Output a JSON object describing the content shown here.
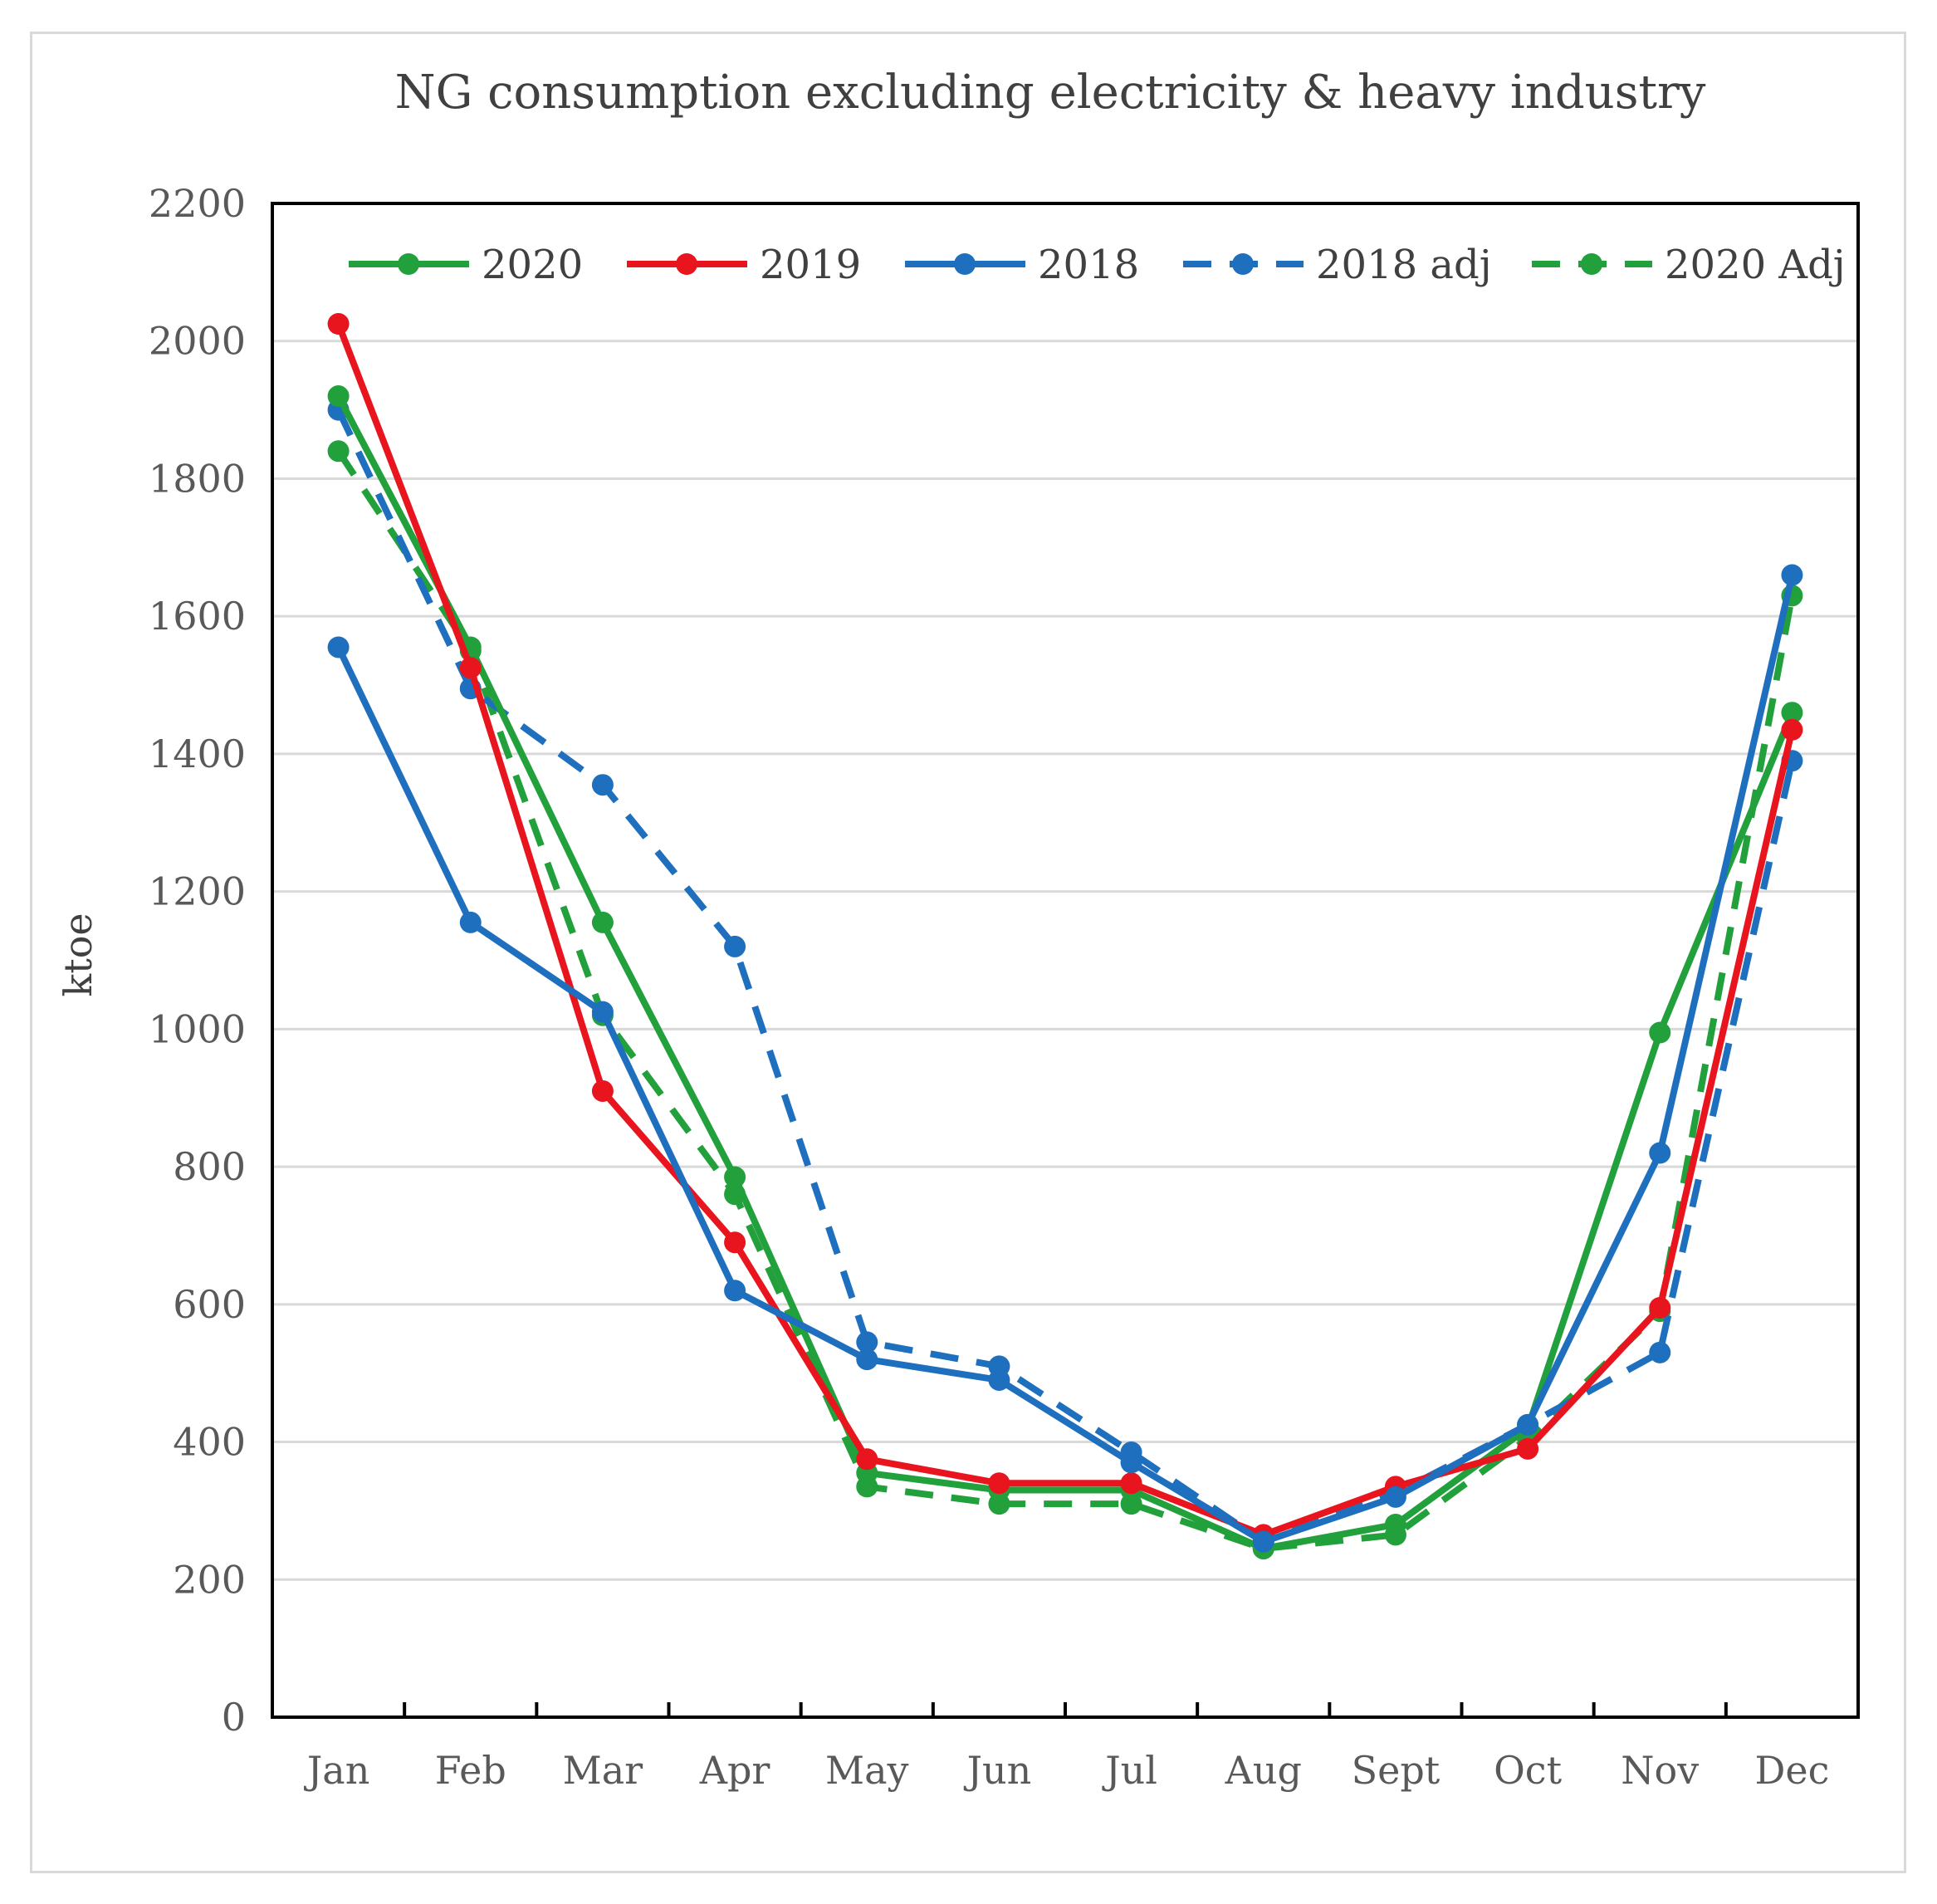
{
  "chart_data": {
    "type": "line",
    "title": "NG consumption excluding electricity & heavy industry",
    "xlabel": "",
    "ylabel": "ktoe",
    "ylim": [
      0,
      2200
    ],
    "yticks": [
      0,
      200,
      400,
      600,
      800,
      1000,
      1200,
      1400,
      1600,
      1800,
      2000,
      2200
    ],
    "categories": [
      "Jan",
      "Feb",
      "Mar",
      "Apr",
      "May",
      "Jun",
      "Jul",
      "Aug",
      "Sept",
      "Oct",
      "Nov",
      "Dec"
    ],
    "grid": "horizontal",
    "legend_position": "top",
    "series": [
      {
        "name": "2020",
        "color": "#21a03c",
        "dash": "solid",
        "values": [
          1920,
          1555,
          1155,
          785,
          355,
          330,
          330,
          245,
          280,
          420,
          995,
          1460
        ]
      },
      {
        "name": "2019",
        "color": "#e8141e",
        "dash": "solid",
        "values": [
          2025,
          1525,
          910,
          690,
          375,
          340,
          340,
          265,
          335,
          390,
          595,
          1435
        ]
      },
      {
        "name": "2018",
        "color": "#1f6fbf",
        "dash": "solid",
        "values": [
          1555,
          1155,
          1025,
          620,
          520,
          490,
          370,
          255,
          320,
          425,
          820,
          1660
        ]
      },
      {
        "name": "2018 adj",
        "color": "#1f6fbf",
        "dash": "dashed",
        "values": [
          1900,
          1495,
          1355,
          1120,
          545,
          510,
          385,
          255,
          325,
          425,
          530,
          1390
        ]
      },
      {
        "name": "2020 Adj",
        "color": "#21a03c",
        "dash": "dashed",
        "values": [
          1840,
          1550,
          1020,
          760,
          335,
          310,
          310,
          245,
          265,
          405,
          590,
          1630
        ]
      }
    ]
  }
}
